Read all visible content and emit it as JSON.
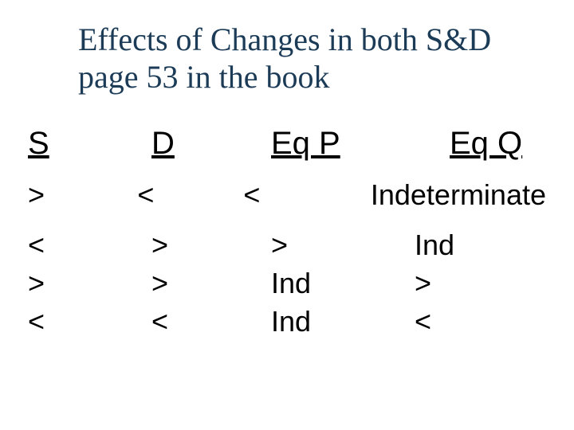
{
  "title_line1": "Effects of Changes in both S&D",
  "title_line2": "page 53 in the book",
  "headers": {
    "s": "S",
    "d": "D",
    "eqp": "Eq P",
    "eqq": "Eq Q"
  },
  "rows": [
    {
      "s": ">",
      "d": "<",
      "eqp": "<",
      "eqq": "Indeterminate"
    },
    {
      "s": "<",
      "d": ">",
      "eqp": ">",
      "eqq": "Ind"
    },
    {
      "s": ">",
      "d": ">",
      "eqp": "Ind",
      "eqq": ">"
    },
    {
      "s": "<",
      "d": "<",
      "eqp": "Ind",
      "eqq": "<"
    }
  ]
}
